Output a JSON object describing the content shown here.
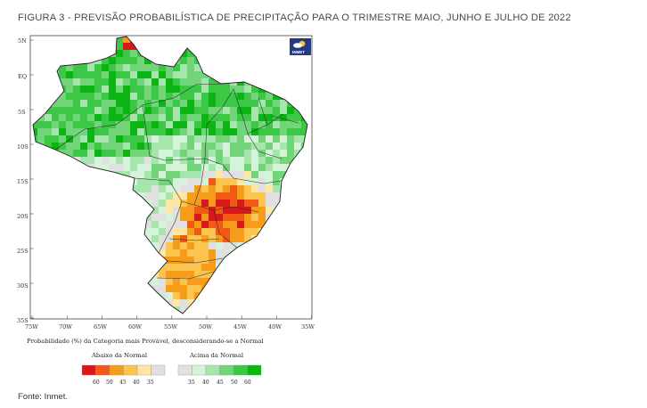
{
  "figure": {
    "title": "FIGURA 3 -  PREVISÃO PROBABILÍSTICA DE PRECIPITAÇÃO PARA O TRIMESTRE MAIO, JUNHO E JULHO DE 2022",
    "source": "Fonte: Inmet."
  },
  "map": {
    "logo_text": "INMET",
    "lat_labels": [
      "5N",
      "EQ",
      "5S",
      "10S",
      "15S",
      "20S",
      "25S",
      "30S",
      "35S"
    ],
    "lon_labels": [
      "75W",
      "70W",
      "65W",
      "60W",
      "55W",
      "50W",
      "45W",
      "40W",
      "35W"
    ],
    "caption": "Probabilidade (%) da Categoria mais Provável, desconsiderando-se a Normal",
    "colors": {
      "land_default": "#e2e2e2",
      "border": "#2a2a2a"
    }
  },
  "legend": {
    "below": {
      "title": "Abaixo da Normal",
      "colors": [
        "#d7191c",
        "#f05a14",
        "#f59c1a",
        "#fbc54f",
        "#fde7a3",
        "#e0e0e0"
      ],
      "labels": [
        "60",
        "50",
        "45",
        "40",
        "35"
      ]
    },
    "above": {
      "title": "Acima da Normal",
      "colors": [
        "#e0e0e0",
        "#d4f3d8",
        "#a6e6ac",
        "#72d57a",
        "#3cc746",
        "#0cb514"
      ],
      "labels": [
        "35",
        "40",
        "45",
        "50",
        "60"
      ]
    }
  }
}
